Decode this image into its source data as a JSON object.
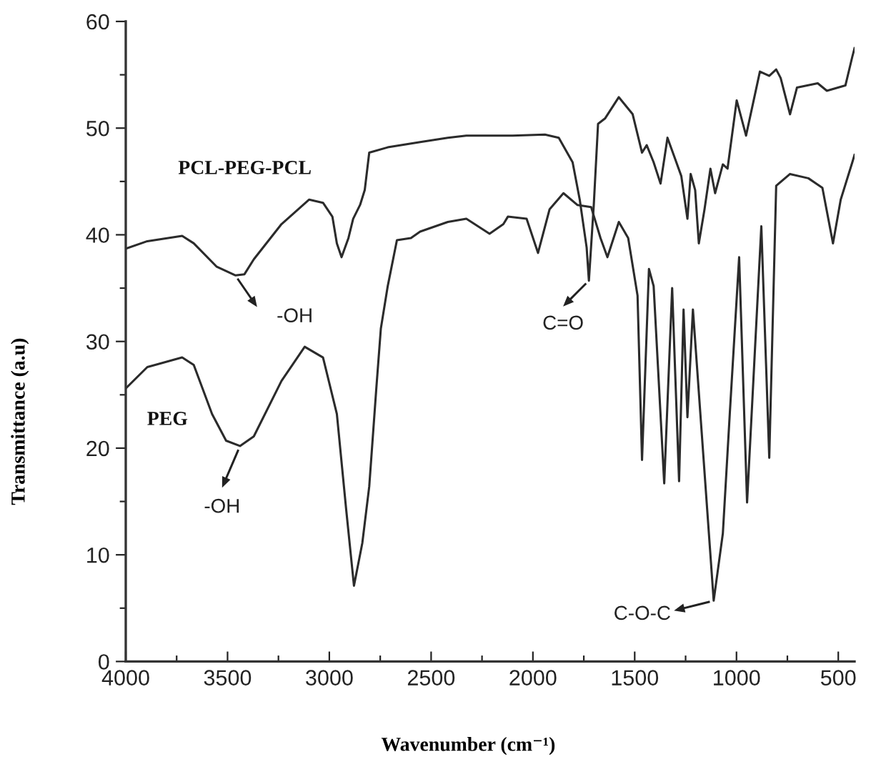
{
  "chart_data": {
    "type": "line",
    "xlabel": "Wavenumber (cm⁻¹)",
    "ylabel": "Transmittance (a.u)",
    "xlim": [
      4000,
      420
    ],
    "ylim": [
      0,
      60
    ],
    "xticks": [
      4000,
      {
        "value": 3750,
        "label": null
      },
      3500,
      {
        "value": 3250,
        "label": null
      },
      3000,
      {
        "value": 2750,
        "label": null
      },
      2500,
      {
        "value": 2250,
        "label": null
      },
      2000,
      {
        "value": 1750,
        "label": null
      },
      1500,
      {
        "value": 1250,
        "label": null
      },
      1000,
      {
        "value": 750,
        "label": null
      },
      500
    ],
    "yticks": [
      0,
      {
        "value": 5,
        "label": null
      },
      10,
      {
        "value": 15,
        "label": null
      },
      20,
      {
        "value": 25,
        "label": null
      },
      30,
      {
        "value": 35,
        "label": null
      },
      40,
      {
        "value": 45,
        "label": null
      },
      50,
      {
        "value": 55,
        "label": null
      },
      60
    ],
    "series": [
      {
        "name": "PCL-PEG-PCL",
        "color": "#2b2b2b",
        "x": [
          4000,
          3894,
          3723,
          3666,
          3553,
          3462,
          3417,
          3371,
          3235,
          3099,
          3031,
          2985,
          2963,
          2940,
          2906,
          2883,
          2849,
          2826,
          2804,
          2713,
          2554,
          2418,
          2327,
          2100,
          1941,
          1873,
          1805,
          1770,
          1736,
          1725,
          1701,
          1680,
          1646,
          1578,
          1510,
          1464,
          1441,
          1407,
          1373,
          1339,
          1305,
          1271,
          1241,
          1225,
          1203,
          1185,
          1157,
          1128,
          1105,
          1067,
          1044,
          999,
          953,
          885,
          839,
          805,
          783,
          737,
          703,
          601,
          556,
          465,
          431,
          420
        ],
        "values": [
          38.7,
          39.4,
          39.9,
          39.2,
          37.0,
          36.2,
          36.3,
          37.7,
          41.0,
          43.3,
          43.0,
          41.7,
          39.2,
          37.9,
          39.7,
          41.5,
          42.8,
          44.2,
          47.7,
          48.2,
          48.7,
          49.1,
          49.3,
          49.3,
          49.4,
          49.1,
          46.8,
          43.3,
          38.8,
          35.7,
          42.8,
          50.4,
          50.9,
          52.9,
          51.3,
          47.7,
          48.4,
          46.8,
          44.8,
          49.1,
          47.3,
          45.5,
          41.5,
          45.7,
          44.2,
          39.2,
          42.4,
          46.2,
          43.9,
          46.6,
          46.2,
          52.6,
          49.3,
          55.3,
          54.9,
          55.5,
          54.7,
          51.3,
          53.8,
          54.2,
          53.5,
          54.0,
          56.7,
          57.5
        ]
      },
      {
        "name": "PEG",
        "color": "#2b2b2b",
        "x": [
          4000,
          3894,
          3723,
          3666,
          3576,
          3507,
          3439,
          3371,
          3235,
          3121,
          3031,
          2963,
          2917,
          2879,
          2838,
          2804,
          2770,
          2747,
          2713,
          2668,
          2599,
          2554,
          2418,
          2327,
          2213,
          2145,
          2123,
          2031,
          1975,
          1918,
          1850,
          1782,
          1714,
          1668,
          1634,
          1578,
          1532,
          1486,
          1464,
          1430,
          1407,
          1355,
          1316,
          1282,
          1260,
          1241,
          1214,
          1112,
          1067,
          1033,
          987,
          948,
          878,
          839,
          805,
          737,
          647,
          578,
          526,
          488,
          431,
          420
        ],
        "values": [
          25.6,
          27.6,
          28.5,
          27.8,
          23.2,
          20.7,
          20.2,
          21.1,
          26.3,
          29.5,
          28.5,
          23.2,
          14.2,
          7.1,
          11.1,
          16.4,
          25.4,
          31.2,
          35.2,
          39.5,
          39.7,
          40.3,
          41.2,
          41.5,
          40.1,
          41.0,
          41.7,
          41.5,
          38.3,
          42.4,
          43.9,
          42.8,
          42.6,
          39.7,
          37.9,
          41.2,
          39.7,
          34.3,
          18.9,
          36.8,
          35.2,
          16.7,
          35.0,
          16.9,
          33.0,
          22.9,
          33.0,
          5.7,
          12.0,
          23.2,
          37.9,
          14.9,
          40.8,
          19.1,
          44.6,
          45.7,
          45.3,
          44.4,
          39.2,
          43.3,
          46.8,
          47.5
        ]
      }
    ],
    "annotations": [
      {
        "text": "-OH",
        "x": 3462,
        "y": 36.2
      },
      {
        "text": "-OH",
        "x": 3439,
        "y": 20.2
      },
      {
        "text": "C=O",
        "x": 1725,
        "y": 35.7
      },
      {
        "text": "C-O-C",
        "x": 1112,
        "y": 5.7
      }
    ],
    "legend": false,
    "grid": false,
    "marker": "none",
    "line_style": "solid"
  }
}
